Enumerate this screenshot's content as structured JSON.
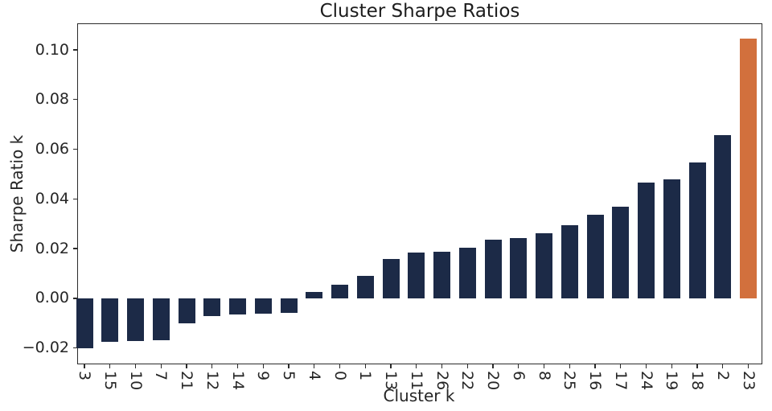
{
  "figure": {
    "title": "Cluster Sharpe Ratios",
    "xlabel": "Cluster k",
    "ylabel": "Sharpe Ratio k"
  },
  "chart_data": {
    "type": "bar",
    "title": "Cluster Sharpe Ratios",
    "xlabel": "Cluster k",
    "ylabel": "Sharpe Ratio k",
    "categories": [
      "3",
      "15",
      "10",
      "7",
      "21",
      "12",
      "14",
      "9",
      "5",
      "4",
      "0",
      "1",
      "13",
      "11",
      "26",
      "22",
      "20",
      "6",
      "8",
      "25",
      "16",
      "17",
      "24",
      "19",
      "18",
      "2",
      "23"
    ],
    "values": [
      -0.02,
      -0.0174,
      -0.0171,
      -0.017,
      -0.01,
      -0.0073,
      -0.0066,
      -0.0061,
      -0.0058,
      0.0024,
      0.0056,
      0.0089,
      0.0158,
      0.0183,
      0.0187,
      0.0205,
      0.0235,
      0.0243,
      0.0262,
      0.0294,
      0.0337,
      0.037,
      0.0467,
      0.048,
      0.0548,
      0.0656,
      0.1045
    ],
    "ylim": [
      -0.0266,
      0.1107
    ],
    "yticks": [
      0.1,
      0.08,
      0.06,
      0.04,
      0.02,
      0.0,
      -0.02
    ],
    "ytick_labels": [
      "0.10",
      "0.08",
      "0.06",
      "0.04",
      "0.02",
      "0.00",
      "−0.02"
    ],
    "bar_color": "#1c2a47",
    "highlight_color": "#d2703d",
    "highlight_category": "23",
    "grid": false,
    "legend_position": "none"
  }
}
